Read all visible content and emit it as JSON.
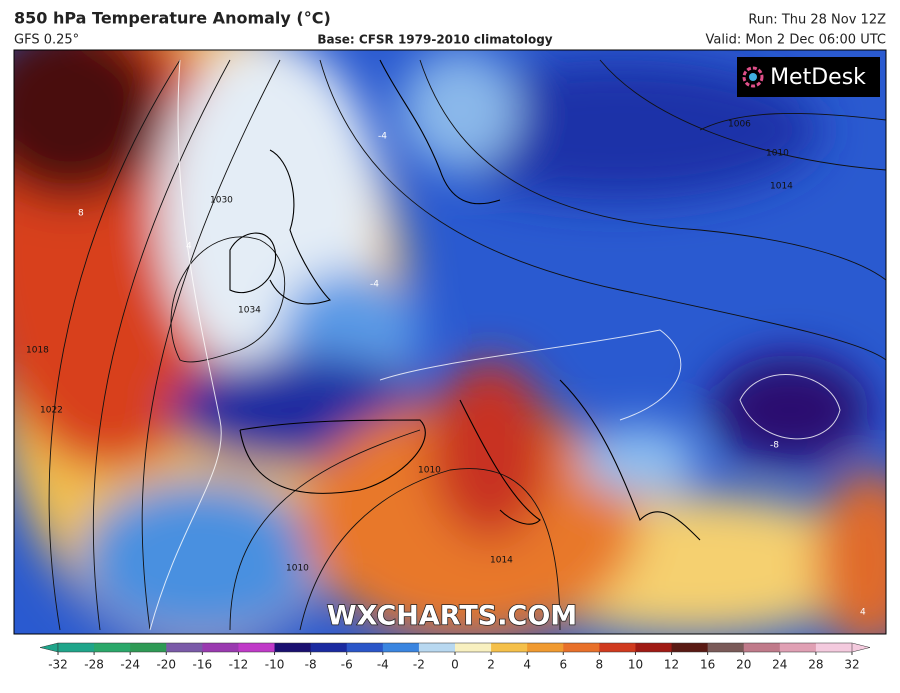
{
  "header": {
    "title": "850 hPa Temperature Anomaly (°C)",
    "model": "GFS 0.25°",
    "base": "Base: CFSR 1979-2010 climatology",
    "run": "Run: Thu 28 Nov 12Z",
    "valid": "Valid: Mon 2 Dec 06:00 UTC"
  },
  "logo": "MetDesk",
  "watermark": "WXCHARTS.COM",
  "contour_labels": [
    1030,
    1034,
    1022,
    1018,
    1010,
    1014,
    1006,
    1010,
    1014,
    1010,
    4,
    8,
    -4,
    -4,
    -8,
    4
  ],
  "colorbar": {
    "ticks": [
      -32,
      -28,
      -24,
      -20,
      -16,
      -12,
      -10,
      -8,
      -6,
      -4,
      -2,
      0,
      2,
      4,
      6,
      8,
      10,
      12,
      16,
      20,
      24,
      28,
      32
    ],
    "colors": [
      "#1fa58a",
      "#2aa86a",
      "#2e9a55",
      "#7a5aa8",
      "#9a3ab0",
      "#c03ac8",
      "#1a1070",
      "#1a2aa0",
      "#2a55c8",
      "#3a85e0",
      "#b8d8f0",
      "#f8f0c0",
      "#f5c04a",
      "#f09a30",
      "#e8702a",
      "#d03a1e",
      "#a01a14",
      "#5a1a14",
      "#7a5a58",
      "#c07a8a",
      "#e0a0b4",
      "#f4cade"
    ]
  }
}
